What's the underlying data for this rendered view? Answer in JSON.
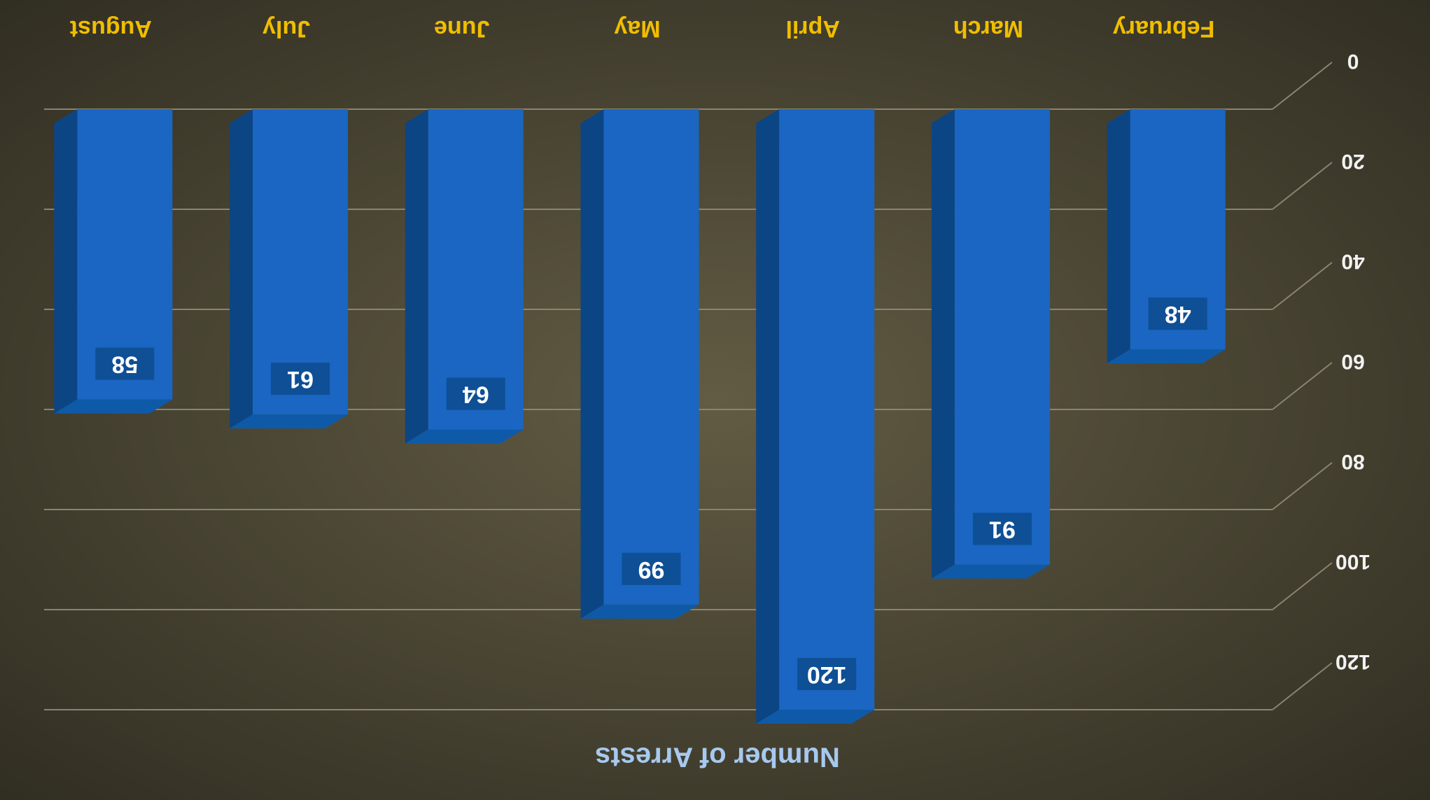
{
  "chart_data": {
    "type": "bar3d",
    "orientation": "rotated-180",
    "y_label": "Number of Arrests",
    "categories": [
      "February",
      "March",
      "April",
      "May",
      "June",
      "July",
      "August"
    ],
    "values": [
      48,
      91,
      120,
      99,
      64,
      61,
      58
    ],
    "color": "#1a66c2",
    "ylim": [
      0,
      120
    ],
    "yticks": [
      0,
      20,
      40,
      60,
      80,
      100,
      120
    ],
    "grid": true
  }
}
